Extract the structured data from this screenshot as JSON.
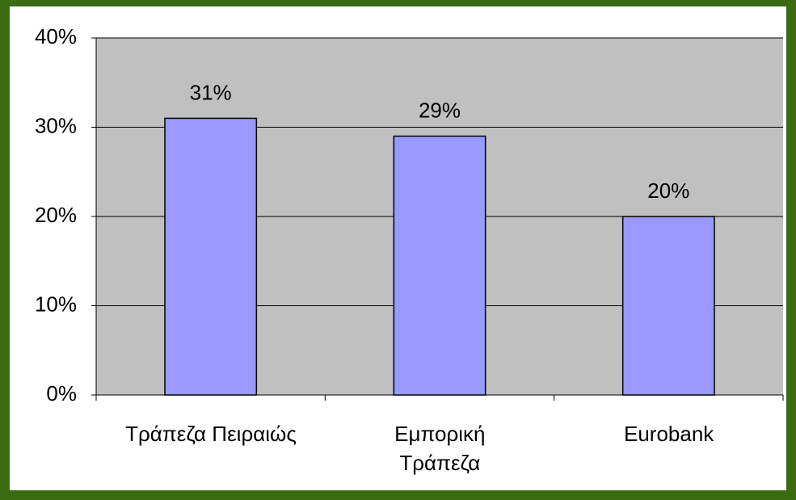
{
  "chart_data": {
    "type": "bar",
    "categories": [
      "Τράπεζα Πειραιώς",
      "Εμπορική\nΤράπεζα",
      "Eurobank"
    ],
    "values": [
      31,
      29,
      20
    ],
    "value_labels": [
      "31%",
      "29%",
      "20%"
    ],
    "color": "#9999ff",
    "ylim": [
      0,
      40
    ],
    "yticks": [
      {
        "value": 0,
        "label": "0%"
      },
      {
        "value": 10,
        "label": "10%"
      },
      {
        "value": 20,
        "label": "20%"
      },
      {
        "value": 30,
        "label": "30%"
      },
      {
        "value": 40,
        "label": "40%"
      }
    ],
    "grid": true
  }
}
